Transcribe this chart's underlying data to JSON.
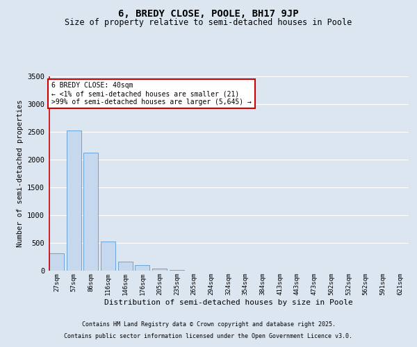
{
  "title": "6, BREDY CLOSE, POOLE, BH17 9JP",
  "subtitle": "Size of property relative to semi-detached houses in Poole",
  "xlabel": "Distribution of semi-detached houses by size in Poole",
  "ylabel": "Number of semi-detached properties",
  "annotation_title": "6 BREDY CLOSE: 40sqm",
  "annotation_line1": "← <1% of semi-detached houses are smaller (21)",
  "annotation_line2": ">99% of semi-detached houses are larger (5,645) →",
  "footer_line1": "Contains HM Land Registry data © Crown copyright and database right 2025.",
  "footer_line2": "Contains public sector information licensed under the Open Government Licence v3.0.",
  "bar_color": "#c5d8ed",
  "bar_edge_color": "#5b9bd5",
  "annotation_box_edgecolor": "#cc0000",
  "annotation_box_facecolor": "#ffffff",
  "property_line_color": "#cc0000",
  "background_color": "#dce6f1",
  "plot_bg_color": "#dce6f1",
  "ylim": [
    0,
    3500
  ],
  "yticks": [
    0,
    500,
    1000,
    1500,
    2000,
    2500,
    3000,
    3500
  ],
  "categories": [
    "27sqm",
    "57sqm",
    "86sqm",
    "116sqm",
    "146sqm",
    "176sqm",
    "205sqm",
    "235sqm",
    "265sqm",
    "294sqm",
    "324sqm",
    "354sqm",
    "384sqm",
    "413sqm",
    "443sqm",
    "473sqm",
    "502sqm",
    "532sqm",
    "562sqm",
    "591sqm",
    "621sqm"
  ],
  "values": [
    310,
    2530,
    2130,
    520,
    165,
    100,
    40,
    15,
    5,
    2,
    1,
    0,
    0,
    0,
    0,
    0,
    0,
    0,
    0,
    0,
    0
  ],
  "property_bin_index": 0
}
